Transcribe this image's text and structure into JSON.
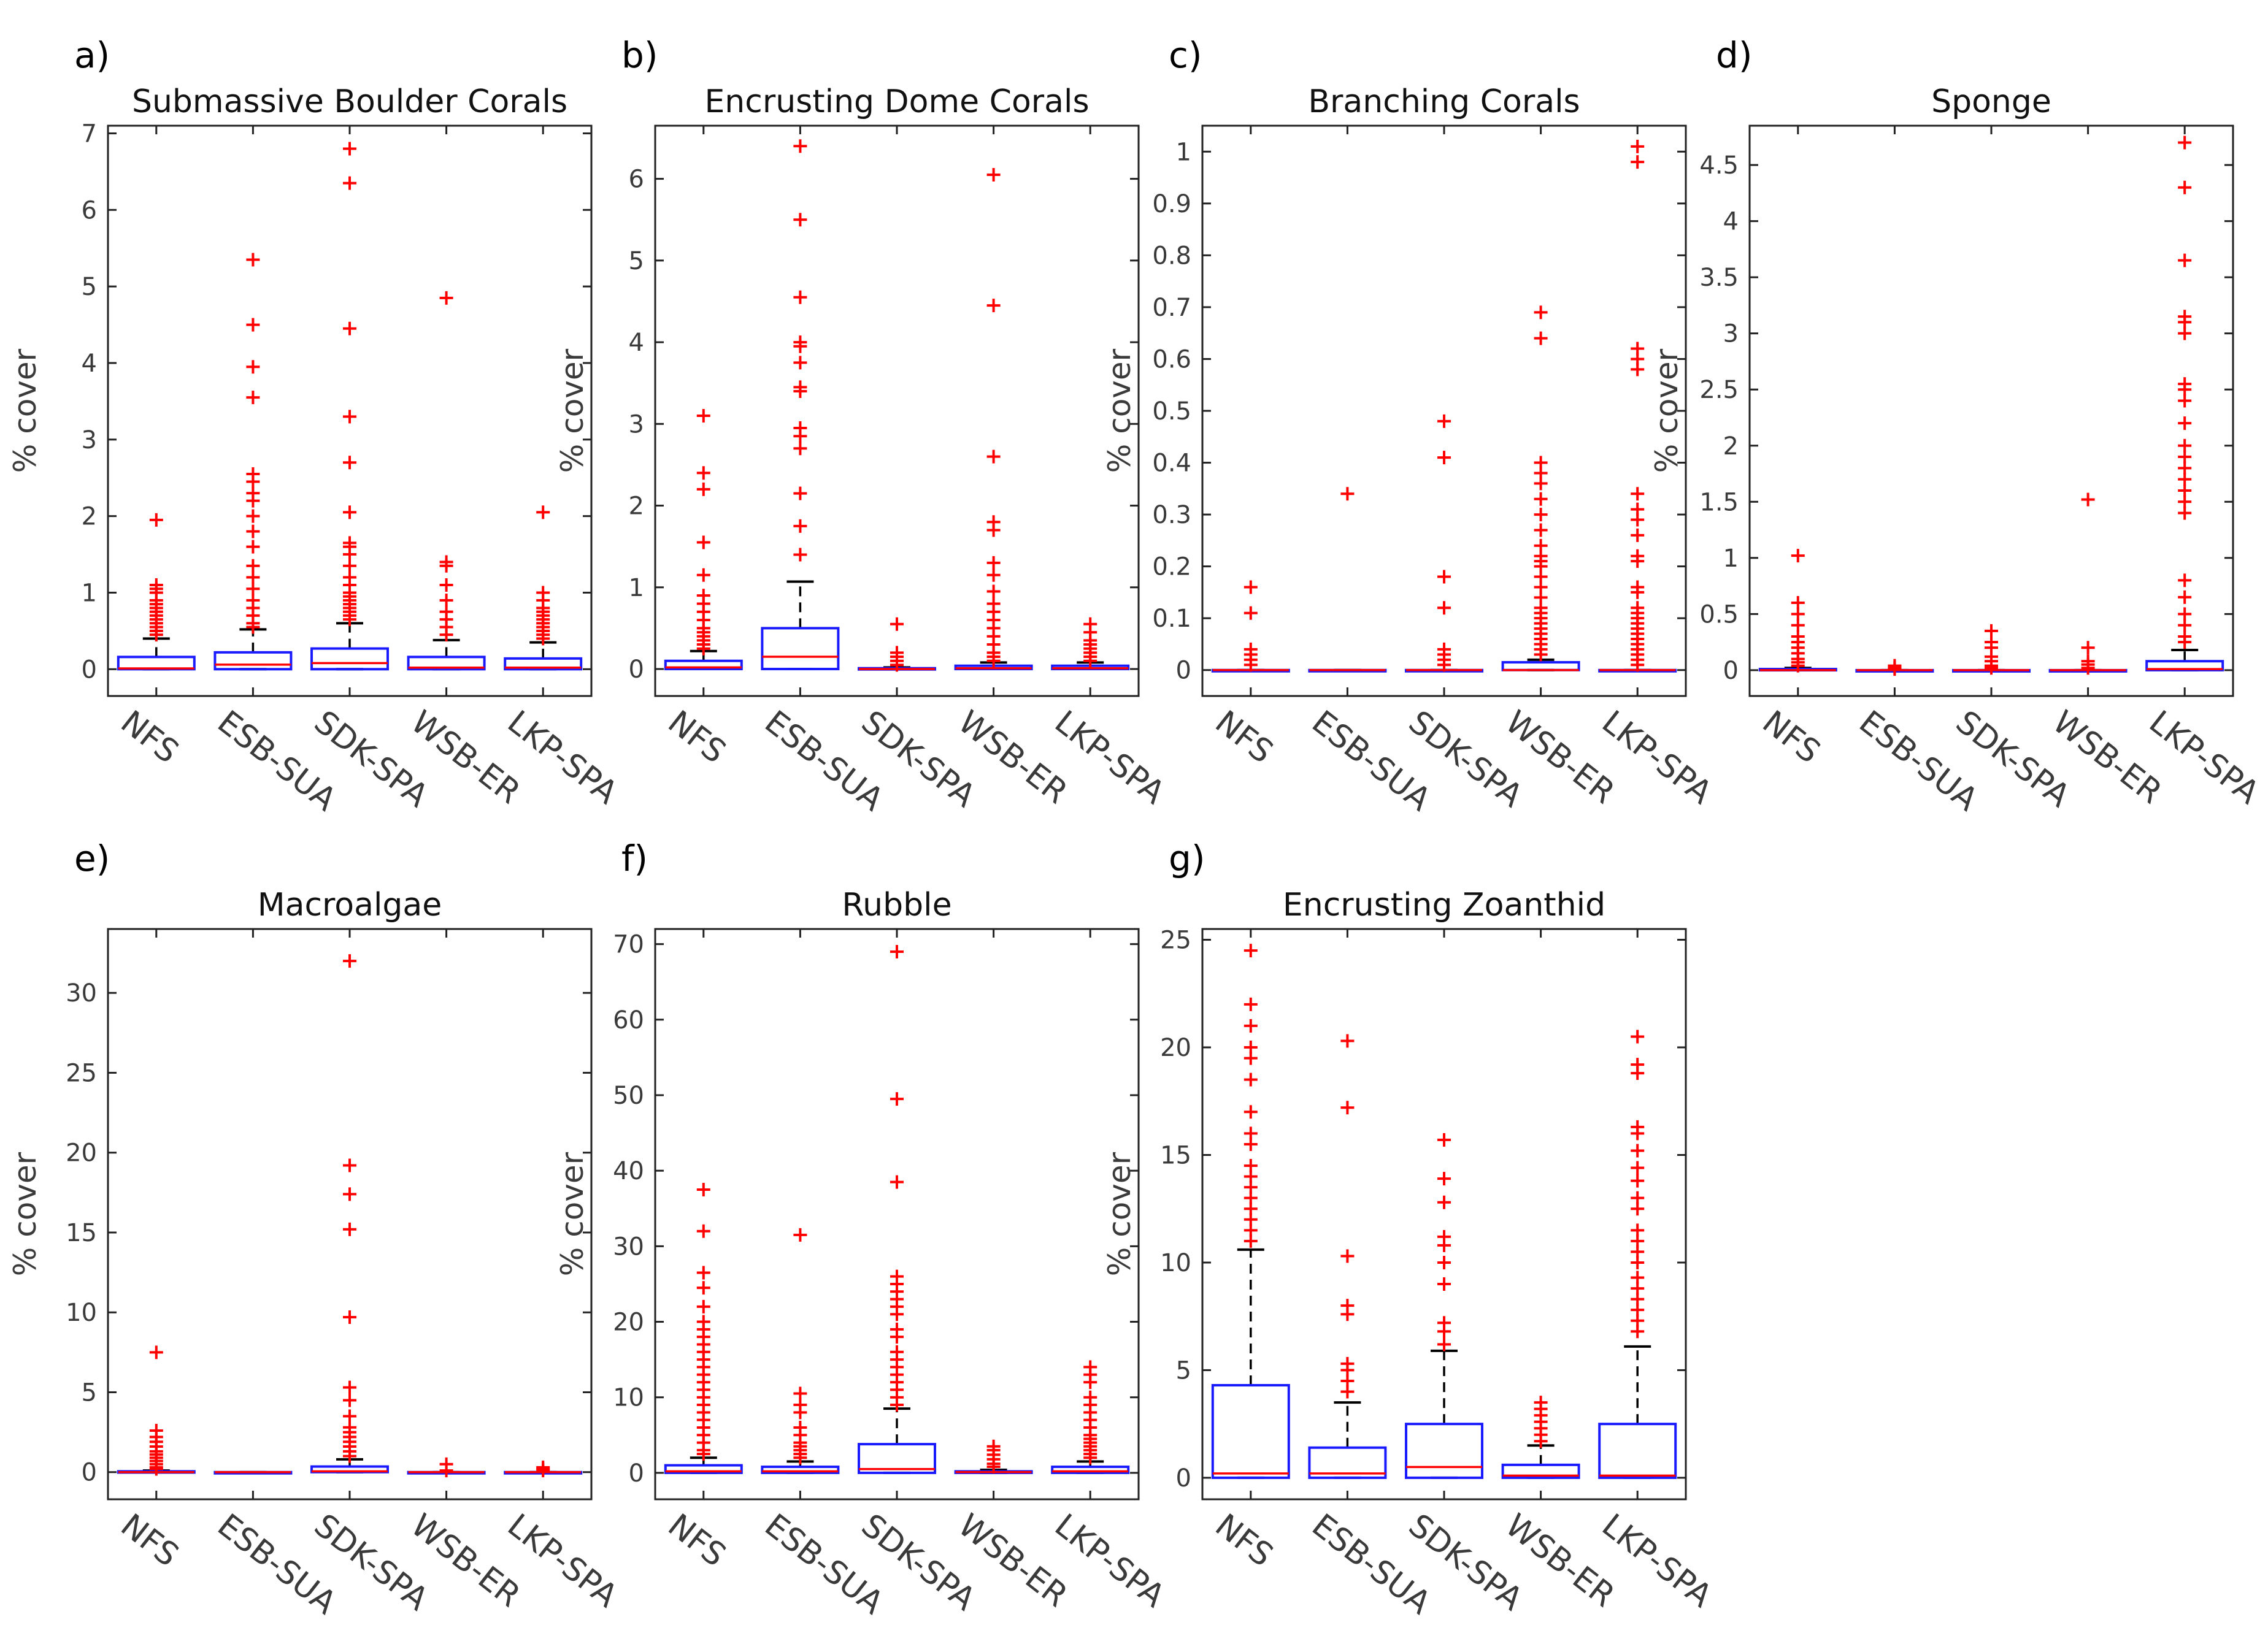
{
  "chart_data": [
    {
      "type": "box",
      "letter": "a)",
      "title": "Submassive Boulder Corals",
      "ylabel": "% cover",
      "ylim": [
        -0.35,
        7.1
      ],
      "yticks": [
        0,
        1,
        2,
        3,
        4,
        5,
        6,
        7
      ],
      "categories": [
        "NFS",
        "ESB-SUA",
        "SDK-SPA",
        "WSB-ER",
        "LKP-SPA"
      ],
      "boxes": [
        {
          "q1": 0,
          "median": 0.01,
          "q3": 0.16,
          "whisker_low": 0,
          "whisker_high": 0.4,
          "outliers": [
            0.45,
            0.5,
            0.55,
            0.6,
            0.65,
            0.7,
            0.75,
            0.8,
            0.85,
            0.9,
            1.0,
            1.05,
            1.1,
            1.95
          ]
        },
        {
          "q1": 0,
          "median": 0.06,
          "q3": 0.22,
          "whisker_low": 0,
          "whisker_high": 0.52,
          "outliers": [
            0.55,
            0.6,
            0.7,
            0.8,
            0.9,
            1.05,
            1.2,
            1.35,
            1.6,
            1.8,
            2.0,
            2.2,
            2.3,
            2.45,
            2.55,
            3.55,
            3.95,
            4.5,
            5.35
          ]
        },
        {
          "q1": 0,
          "median": 0.08,
          "q3": 0.27,
          "whisker_low": 0,
          "whisker_high": 0.6,
          "outliers": [
            0.65,
            0.7,
            0.75,
            0.8,
            0.85,
            0.9,
            0.95,
            1.0,
            1.1,
            1.2,
            1.35,
            1.5,
            1.6,
            1.65,
            2.05,
            2.7,
            3.3,
            4.45,
            6.35,
            6.8
          ]
        },
        {
          "q1": 0,
          "median": 0.02,
          "q3": 0.16,
          "whisker_low": 0,
          "whisker_high": 0.38,
          "outliers": [
            0.45,
            0.55,
            0.65,
            0.75,
            0.9,
            1.1,
            1.35,
            1.4,
            4.85
          ]
        },
        {
          "q1": 0,
          "median": 0.02,
          "q3": 0.14,
          "whisker_low": 0,
          "whisker_high": 0.35,
          "outliers": [
            0.4,
            0.45,
            0.5,
            0.55,
            0.6,
            0.65,
            0.7,
            0.75,
            0.8,
            0.9,
            1.0,
            2.05
          ]
        }
      ]
    },
    {
      "type": "box",
      "letter": "b)",
      "title": "Encrusting Dome Corals",
      "ylabel": "% cover",
      "ylim": [
        -0.33,
        6.65
      ],
      "yticks": [
        0,
        1,
        2,
        3,
        4,
        5,
        6
      ],
      "categories": [
        "NFS",
        "ESB-SUA",
        "SDK-SPA",
        "WSB-ER",
        "LKP-SPA"
      ],
      "boxes": [
        {
          "q1": 0,
          "median": 0.02,
          "q3": 0.1,
          "whisker_low": 0,
          "whisker_high": 0.22,
          "outliers": [
            0.25,
            0.3,
            0.35,
            0.4,
            0.45,
            0.5,
            0.6,
            0.7,
            0.8,
            0.9,
            1.15,
            1.55,
            2.2,
            2.4,
            3.1
          ]
        },
        {
          "q1": 0,
          "median": 0.15,
          "q3": 0.5,
          "whisker_low": 0,
          "whisker_high": 1.07,
          "outliers": [
            1.4,
            1.75,
            2.15,
            2.7,
            2.85,
            2.95,
            3.4,
            3.45,
            3.75,
            3.95,
            4.0,
            4.55,
            5.5,
            6.4
          ]
        },
        {
          "q1": 0,
          "median": 0.0,
          "q3": 0.01,
          "whisker_low": 0,
          "whisker_high": 0.02,
          "outliers": [
            0.05,
            0.1,
            0.15,
            0.2,
            0.55
          ]
        },
        {
          "q1": 0,
          "median": 0.01,
          "q3": 0.04,
          "whisker_low": 0,
          "whisker_high": 0.08,
          "outliers": [
            0.1,
            0.15,
            0.2,
            0.3,
            0.4,
            0.5,
            0.6,
            0.7,
            0.8,
            0.95,
            1.15,
            1.3,
            1.7,
            1.8,
            2.6,
            4.45,
            6.05
          ]
        },
        {
          "q1": 0,
          "median": 0.01,
          "q3": 0.04,
          "whisker_low": 0,
          "whisker_high": 0.08,
          "outliers": [
            0.1,
            0.15,
            0.2,
            0.25,
            0.3,
            0.35,
            0.45,
            0.55
          ]
        }
      ]
    },
    {
      "type": "box",
      "letter": "c)",
      "title": "Branching Corals",
      "ylabel": "% cover",
      "ylim": [
        -0.05,
        1.05
      ],
      "yticks": [
        0,
        0.1,
        0.2,
        0.3,
        0.4,
        0.5,
        0.6,
        0.7,
        0.8,
        0.9,
        1
      ],
      "categories": [
        "NFS",
        "ESB-SUA",
        "SDK-SPA",
        "WSB-ER",
        "LKP-SPA"
      ],
      "boxes": [
        {
          "q1": 0,
          "median": 0,
          "q3": 0,
          "whisker_low": 0,
          "whisker_high": 0,
          "outliers": [
            0.01,
            0.02,
            0.03,
            0.04,
            0.11,
            0.16
          ]
        },
        {
          "q1": 0,
          "median": 0,
          "q3": 0,
          "whisker_low": 0,
          "whisker_high": 0,
          "outliers": [
            0.34
          ]
        },
        {
          "q1": 0,
          "median": 0,
          "q3": 0,
          "whisker_low": 0,
          "whisker_high": 0,
          "outliers": [
            0.01,
            0.02,
            0.03,
            0.04,
            0.12,
            0.18,
            0.41,
            0.48
          ]
        },
        {
          "q1": 0,
          "median": 0,
          "q3": 0.015,
          "whisker_low": 0,
          "whisker_high": 0.02,
          "outliers": [
            0.03,
            0.04,
            0.05,
            0.06,
            0.07,
            0.08,
            0.09,
            0.1,
            0.11,
            0.12,
            0.14,
            0.16,
            0.18,
            0.2,
            0.21,
            0.22,
            0.24,
            0.27,
            0.3,
            0.33,
            0.36,
            0.38,
            0.4,
            0.64,
            0.69
          ]
        },
        {
          "q1": 0,
          "median": 0,
          "q3": 0,
          "whisker_low": 0,
          "whisker_high": 0,
          "outliers": [
            0.01,
            0.02,
            0.03,
            0.04,
            0.05,
            0.06,
            0.07,
            0.08,
            0.09,
            0.1,
            0.11,
            0.12,
            0.15,
            0.16,
            0.21,
            0.22,
            0.26,
            0.29,
            0.31,
            0.34,
            0.58,
            0.6,
            0.62,
            0.98,
            1.01
          ]
        }
      ]
    },
    {
      "type": "box",
      "letter": "d)",
      "title": "Sponge",
      "ylabel": "% cover",
      "ylim": [
        -0.23,
        4.85
      ],
      "yticks": [
        0,
        0.5,
        1,
        1.5,
        2,
        2.5,
        3,
        3.5,
        4,
        4.5
      ],
      "categories": [
        "NFS",
        "ESB-SUA",
        "SDK-SPA",
        "WSB-ER",
        "LKP-SPA"
      ],
      "boxes": [
        {
          "q1": 0,
          "median": 0,
          "q3": 0.01,
          "whisker_low": 0,
          "whisker_high": 0.02,
          "outliers": [
            0.04,
            0.07,
            0.1,
            0.15,
            0.2,
            0.25,
            0.3,
            0.4,
            0.5,
            0.6,
            1.02
          ]
        },
        {
          "q1": 0,
          "median": 0,
          "q3": 0,
          "whisker_low": 0,
          "whisker_high": 0,
          "outliers": [
            0.01,
            0.02,
            0.04
          ]
        },
        {
          "q1": 0,
          "median": 0,
          "q3": 0,
          "whisker_low": 0,
          "whisker_high": 0,
          "outliers": [
            0.02,
            0.04,
            0.08,
            0.12,
            0.2,
            0.25,
            0.35
          ]
        },
        {
          "q1": 0,
          "median": 0,
          "q3": 0,
          "whisker_low": 0,
          "whisker_high": 0,
          "outliers": [
            0.02,
            0.05,
            0.08,
            0.2,
            1.52
          ]
        },
        {
          "q1": 0,
          "median": 0.01,
          "q3": 0.08,
          "whisker_low": 0,
          "whisker_high": 0.18,
          "outliers": [
            0.25,
            0.3,
            0.4,
            0.5,
            0.65,
            0.8,
            1.4,
            1.5,
            1.6,
            1.7,
            1.8,
            1.9,
            2.0,
            2.2,
            2.4,
            2.5,
            2.55,
            3.0,
            3.1,
            3.15,
            3.65,
            4.3,
            4.7
          ]
        }
      ]
    },
    {
      "type": "box",
      "letter": "e)",
      "title": "Macroalgae",
      "ylabel": "% cover",
      "ylim": [
        -1.7,
        34
      ],
      "yticks": [
        0,
        5,
        10,
        15,
        20,
        25,
        30
      ],
      "categories": [
        "NFS",
        "ESB-SUA",
        "SDK-SPA",
        "WSB-ER",
        "LKP-SPA"
      ],
      "boxes": [
        {
          "q1": 0,
          "median": 0,
          "q3": 0.05,
          "whisker_low": 0,
          "whisker_high": 0.1,
          "outliers": [
            0.2,
            0.3,
            0.5,
            0.7,
            0.9,
            1.1,
            1.3,
            1.6,
            1.9,
            2.2,
            2.6,
            7.5
          ]
        },
        {
          "q1": 0,
          "median": 0,
          "q3": 0,
          "whisker_low": 0,
          "whisker_high": 0,
          "outliers": []
        },
        {
          "q1": 0,
          "median": 0.05,
          "q3": 0.35,
          "whisker_low": 0,
          "whisker_high": 0.8,
          "outliers": [
            1.0,
            1.3,
            1.6,
            1.9,
            2.2,
            2.5,
            2.8,
            3.5,
            4.5,
            5.3,
            9.7,
            15.2,
            17.4,
            19.2,
            32
          ]
        },
        {
          "q1": 0,
          "median": 0,
          "q3": 0,
          "whisker_low": 0,
          "whisker_high": 0,
          "outliers": [
            0.1,
            0.5
          ]
        },
        {
          "q1": 0,
          "median": 0,
          "q3": 0,
          "whisker_low": 0,
          "whisker_high": 0,
          "outliers": [
            0.1,
            0.2,
            0.3
          ]
        }
      ]
    },
    {
      "type": "box",
      "letter": "f)",
      "title": "Rubble",
      "ylabel": "% cover",
      "ylim": [
        -3.5,
        72
      ],
      "yticks": [
        0,
        10,
        20,
        30,
        40,
        50,
        60,
        70
      ],
      "categories": [
        "NFS",
        "ESB-SUA",
        "SDK-SPA",
        "WSB-ER",
        "LKP-SPA"
      ],
      "boxes": [
        {
          "q1": 0,
          "median": 0.2,
          "q3": 1.0,
          "whisker_low": 0,
          "whisker_high": 2.0,
          "outliers": [
            2.5,
            3.0,
            4.0,
            5.0,
            6.0,
            7.0,
            8.0,
            9.0,
            10.0,
            11.0,
            12.0,
            13.0,
            14.0,
            15.0,
            16.0,
            17.0,
            18.0,
            19.0,
            20.0,
            22.0,
            24.5,
            26.5,
            32.0,
            37.5
          ]
        },
        {
          "q1": 0,
          "median": 0.2,
          "q3": 0.8,
          "whisker_low": 0,
          "whisker_high": 1.5,
          "outliers": [
            2.0,
            2.5,
            3.0,
            3.5,
            4.0,
            5.0,
            6.0,
            8.0,
            9.0,
            10.5,
            31.5
          ]
        },
        {
          "q1": 0,
          "median": 0.5,
          "q3": 3.8,
          "whisker_low": 0,
          "whisker_high": 8.5,
          "outliers": [
            9.0,
            10.0,
            11.0,
            12.0,
            13.0,
            14.0,
            15.0,
            16.0,
            18.0,
            19.0,
            21.0,
            22.0,
            23.0,
            24.0,
            25.0,
            26.0,
            38.5,
            49.5,
            69.0
          ]
        },
        {
          "q1": 0,
          "median": 0.1,
          "q3": 0.2,
          "whisker_low": 0,
          "whisker_high": 0.4,
          "outliers": [
            0.8,
            1.2,
            1.8,
            2.4,
            3.0,
            3.5
          ]
        },
        {
          "q1": 0,
          "median": 0.2,
          "q3": 0.8,
          "whisker_low": 0,
          "whisker_high": 1.5,
          "outliers": [
            2.0,
            2.5,
            3.0,
            3.5,
            4.0,
            4.5,
            5.0,
            6.0,
            7.0,
            8.0,
            9.0,
            10.0,
            12.0,
            13.0,
            14.0
          ]
        }
      ]
    },
    {
      "type": "box",
      "letter": "g)",
      "title": "Encrusting Zoanthid",
      "ylabel": "% cover",
      "ylim": [
        -1.0,
        25.5
      ],
      "yticks": [
        0,
        5,
        10,
        15,
        20,
        25
      ],
      "categories": [
        "NFS",
        "ESB-SUA",
        "SDK-SPA",
        "WSB-ER",
        "LKP-SPA"
      ],
      "boxes": [
        {
          "q1": 0,
          "median": 0.2,
          "q3": 4.3,
          "whisker_low": 0,
          "whisker_high": 10.6,
          "outliers": [
            11.0,
            11.5,
            12.0,
            12.5,
            13.0,
            13.5,
            14.0,
            14.5,
            15.5,
            16.0,
            17.0,
            18.5,
            19.5,
            20.0,
            21.0,
            22.0,
            24.5
          ]
        },
        {
          "q1": 0,
          "median": 0.2,
          "q3": 1.4,
          "whisker_low": 0,
          "whisker_high": 3.5,
          "outliers": [
            4.0,
            4.5,
            5.0,
            5.3,
            7.6,
            8.0,
            10.3,
            17.2,
            20.3
          ]
        },
        {
          "q1": 0,
          "median": 0.5,
          "q3": 2.5,
          "whisker_low": 0,
          "whisker_high": 5.9,
          "outliers": [
            6.2,
            6.8,
            7.2,
            9.0,
            10.0,
            10.8,
            11.2,
            12.8,
            13.9,
            15.7
          ]
        },
        {
          "q1": 0,
          "median": 0.1,
          "q3": 0.6,
          "whisker_low": 0,
          "whisker_high": 1.5,
          "outliers": [
            1.7,
            2.0,
            2.3,
            2.6,
            2.9,
            3.2,
            3.5
          ]
        },
        {
          "q1": 0,
          "median": 0.1,
          "q3": 2.5,
          "whisker_low": 0,
          "whisker_high": 6.1,
          "outliers": [
            6.8,
            7.3,
            7.8,
            8.3,
            8.8,
            9.3,
            10.0,
            10.5,
            11.0,
            11.5,
            12.5,
            13.0,
            13.8,
            14.4,
            15.2,
            16.0,
            16.3,
            18.8,
            19.2,
            20.5
          ]
        }
      ]
    }
  ]
}
